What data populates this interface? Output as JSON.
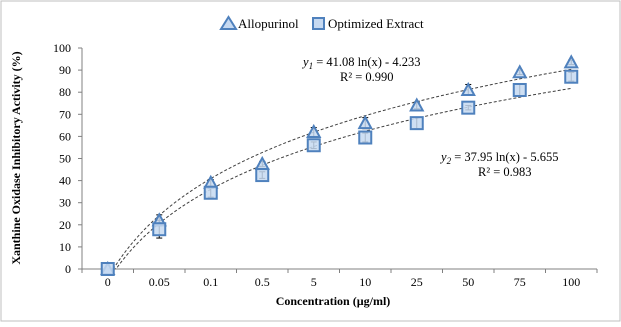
{
  "chart_data": {
    "type": "scatter",
    "xlabel": "Concentration (µg/ml)",
    "ylabel": "Xanthine Oxidase Inhibitory Activity (%)",
    "categories": [
      "0",
      "0.05",
      "0.1",
      "0.5",
      "5",
      "10",
      "25",
      "50",
      "75",
      "100"
    ],
    "ylim": [
      0,
      100
    ],
    "yticks": [
      "0",
      "10",
      "20",
      "30",
      "40",
      "50",
      "60",
      "70",
      "80",
      "90",
      "100"
    ],
    "grid": false,
    "legend_position": "top-center",
    "series": [
      {
        "name": "Allopurinol",
        "marker": "triangle",
        "color": "#4f81bd",
        "values": [
          0,
          22,
          39,
          47.5,
          62,
          66,
          74,
          81,
          89,
          93.5
        ],
        "errors": [
          0,
          2.5,
          1.5,
          1.2,
          2,
          2.5,
          1.5,
          2.5,
          1,
          1
        ],
        "trendline": {
          "type": "logarithmic",
          "equation_prefix": "y",
          "equation_subscript": "1",
          "equation_rest": " = 41.08 ln(x) - 4.233",
          "r_squared": "R² = 0.990",
          "a": 41.08,
          "b": -4.233
        }
      },
      {
        "name": "Optimized Extract",
        "marker": "square",
        "color": "#4f81bd",
        "values": [
          0,
          18,
          34.5,
          42.5,
          56,
          59.5,
          66,
          73,
          81,
          87
        ],
        "errors": [
          0,
          4,
          2,
          1.5,
          1.5,
          2,
          2.5,
          1,
          2.5,
          2
        ],
        "trendline": {
          "type": "logarithmic",
          "equation_prefix": "y",
          "equation_subscript": "2",
          "equation_rest": " = 37.95 ln(x) - 5.655",
          "r_squared": "R² = 0.983",
          "a": 37.95,
          "b": -5.655
        }
      }
    ]
  }
}
